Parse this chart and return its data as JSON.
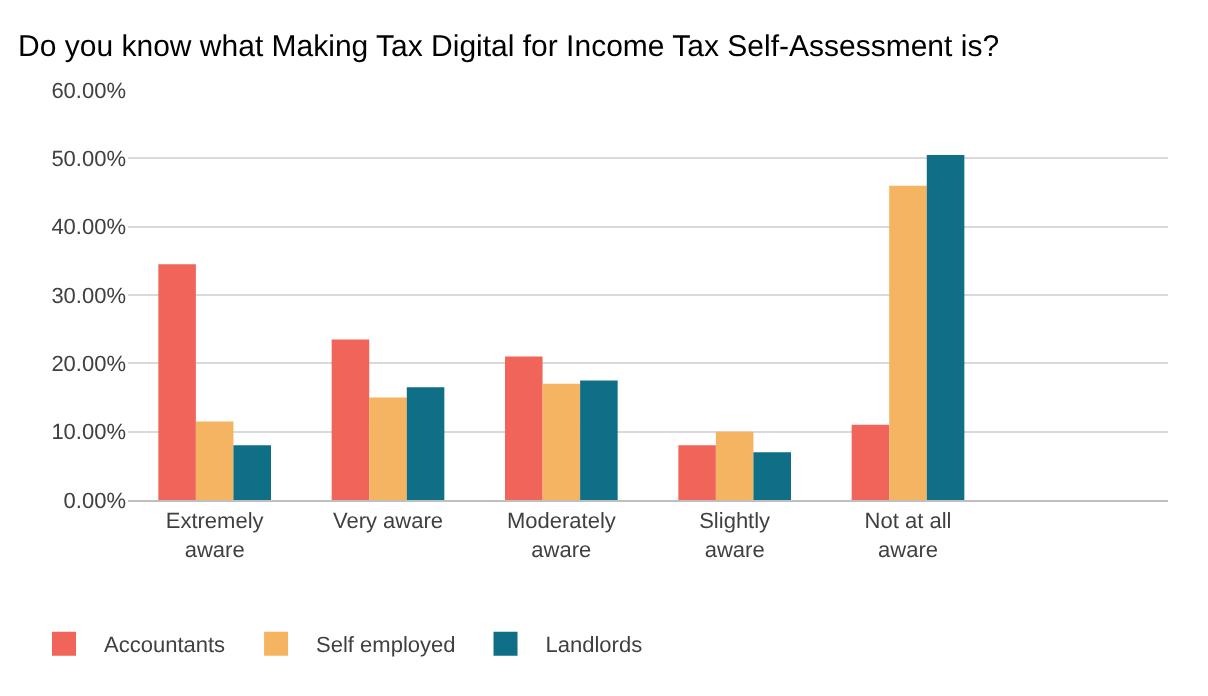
{
  "chart_data": {
    "type": "bar",
    "title": "Do you know what Making Tax Digital for Income Tax Self-Assessment is?",
    "categories": [
      "Extremely aware",
      "Very aware",
      "Moderately aware",
      "Slightly aware",
      "Not at all aware"
    ],
    "series": [
      {
        "name": "Accountants",
        "color": "#f0645a",
        "values": [
          34.5,
          23.5,
          21,
          8,
          11
        ]
      },
      {
        "name": "Self employed",
        "color": "#f5b461",
        "values": [
          11.5,
          15,
          17,
          10,
          46
        ]
      },
      {
        "name": "Landlords",
        "color": "#0e6f86",
        "values": [
          8,
          16.5,
          17.5,
          7,
          50.5
        ]
      }
    ],
    "ylim": [
      0,
      60
    ],
    "yticks": [
      {
        "value": 0,
        "label": "0.00%"
      },
      {
        "value": 10,
        "label": "10.00%"
      },
      {
        "value": 20,
        "label": "20.00%"
      },
      {
        "value": 30,
        "label": "30.00%"
      },
      {
        "value": 40,
        "label": "40.00%"
      },
      {
        "value": 50,
        "label": "50.00%"
      },
      {
        "value": 60,
        "label": "60.00%"
      }
    ],
    "grid": "y",
    "legend": "bottom left"
  }
}
